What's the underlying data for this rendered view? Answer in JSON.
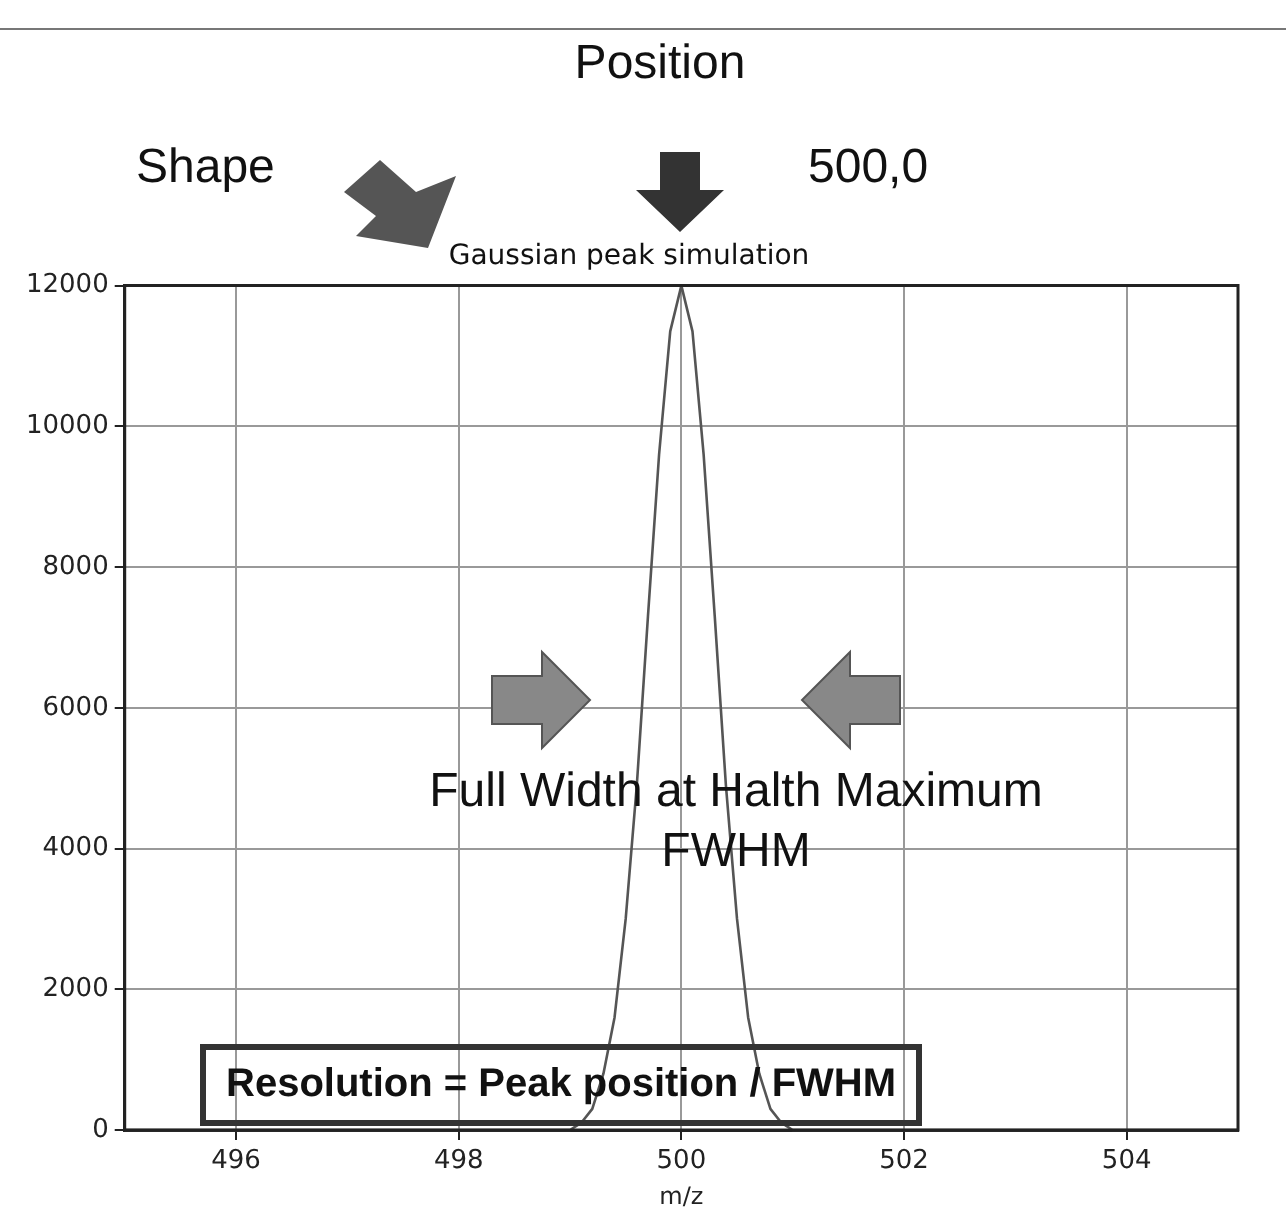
{
  "chart_data": {
    "type": "line",
    "title": "Gaussian peak simulation",
    "xlabel": "m/z",
    "x": [
      495,
      499,
      499.1,
      499.2,
      499.3,
      499.4,
      499.5,
      499.6,
      499.7,
      499.8,
      499.9,
      500,
      500.1,
      500.2,
      500.3,
      500.4,
      500.5,
      500.6,
      500.7,
      500.8,
      500.9,
      501,
      505
    ],
    "series": [
      {
        "color": "#555555",
        "values": [
          0,
          0,
          100,
          300,
          800,
          1600,
          3000,
          4900,
          7300,
          9600,
          11350,
          12000,
          11350,
          9600,
          7300,
          4900,
          3000,
          1600,
          800,
          300,
          100,
          0,
          0
        ]
      }
    ],
    "xlim": [
      495,
      505
    ],
    "xticks": [
      496,
      498,
      500,
      502,
      504
    ],
    "ylim": [
      0,
      12000
    ],
    "yticks": [
      0,
      2000,
      4000,
      6000,
      8000,
      10000,
      12000
    ],
    "grid": true,
    "marker": "none",
    "line_style": "solid",
    "legend": false,
    "annotations": [
      "Position",
      "Shape",
      "500,0",
      "Full Width at Halth Maximum",
      "FWHM",
      "Resolution = Peak position / FWHM"
    ]
  }
}
